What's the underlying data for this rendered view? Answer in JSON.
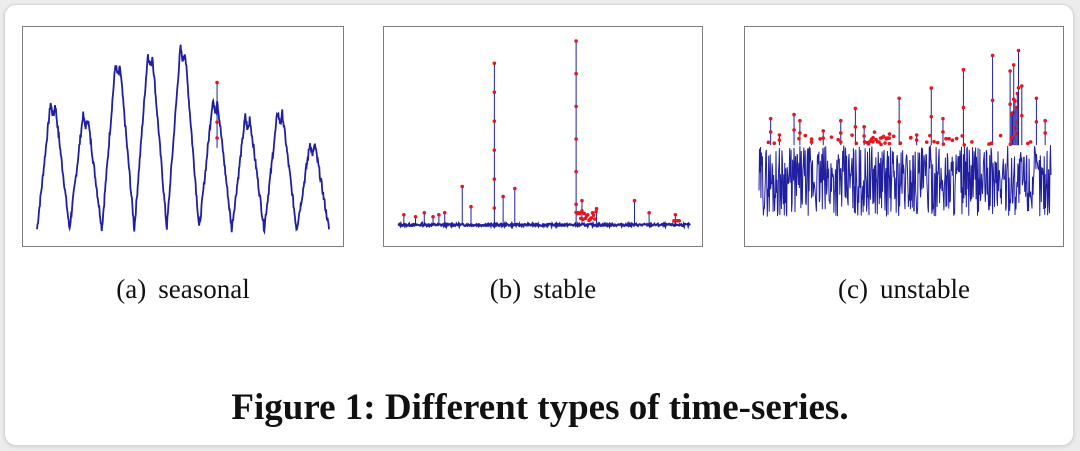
{
  "figure": {
    "title": "Figure 1: Different types of time-series."
  },
  "panels": [
    {
      "tag": "(a)",
      "label": "seasonal"
    },
    {
      "tag": "(b)",
      "label": "stable"
    },
    {
      "tag": "(c)",
      "label": "unstable"
    }
  ],
  "colors": {
    "series": "#1f1fa0",
    "anomaly": "#e8141e",
    "frame": "#7d7d7d"
  },
  "chart_data": [
    {
      "type": "line",
      "variant": "seasonal",
      "grid": false,
      "legend": "none",
      "series_color": "#1f1fa0",
      "anomaly_color": "#e8141e",
      "ylim": [
        0,
        1
      ],
      "cycles": 9,
      "cycle_peaks": [
        0.68,
        0.62,
        0.88,
        0.93,
        0.96,
        0.7,
        0.61,
        0.64,
        0.48
      ],
      "trough": 0.04,
      "anomaly_points": [
        0.78,
        0.58,
        0.5
      ]
    },
    {
      "type": "line",
      "variant": "stable",
      "grid": false,
      "legend": "none",
      "series_color": "#1f1fa0",
      "anomaly_color": "#e8141e",
      "ylim": [
        0,
        1
      ],
      "baseline": 0.06,
      "spikes": [
        {
          "t": 0.02,
          "v": 0.11
        },
        {
          "t": 0.06,
          "v": 0.1
        },
        {
          "t": 0.09,
          "v": 0.12
        },
        {
          "t": 0.12,
          "v": 0.1
        },
        {
          "t": 0.14,
          "v": 0.11
        },
        {
          "t": 0.16,
          "v": 0.12
        },
        {
          "t": 0.22,
          "v": 0.25
        },
        {
          "t": 0.25,
          "v": 0.15
        },
        {
          "t": 0.33,
          "v": 0.86
        },
        {
          "t": 0.36,
          "v": 0.2
        },
        {
          "t": 0.4,
          "v": 0.24
        },
        {
          "t": 0.61,
          "v": 0.97
        },
        {
          "t": 0.63,
          "v": 0.18
        },
        {
          "t": 0.68,
          "v": 0.14
        },
        {
          "t": 0.81,
          "v": 0.18
        },
        {
          "t": 0.86,
          "v": 0.12
        },
        {
          "t": 0.95,
          "v": 0.11
        }
      ]
    },
    {
      "type": "line",
      "variant": "unstable",
      "grid": false,
      "legend": "none",
      "series_color": "#1f1fa0",
      "anomaly_color": "#e8141e",
      "ylim": [
        0,
        1
      ],
      "band": [
        0.1,
        0.45
      ],
      "spikes": [
        {
          "t": 0.04,
          "v": 0.58
        },
        {
          "t": 0.07,
          "v": 0.5
        },
        {
          "t": 0.12,
          "v": 0.6
        },
        {
          "t": 0.14,
          "v": 0.57
        },
        {
          "t": 0.18,
          "v": 0.48
        },
        {
          "t": 0.22,
          "v": 0.52
        },
        {
          "t": 0.28,
          "v": 0.57
        },
        {
          "t": 0.33,
          "v": 0.63
        },
        {
          "t": 0.36,
          "v": 0.54
        },
        {
          "t": 0.48,
          "v": 0.68
        },
        {
          "t": 0.54,
          "v": 0.5
        },
        {
          "t": 0.59,
          "v": 0.73
        },
        {
          "t": 0.63,
          "v": 0.58
        },
        {
          "t": 0.7,
          "v": 0.82
        },
        {
          "t": 0.8,
          "v": 0.89
        },
        {
          "t": 0.9,
          "v": 0.74
        },
        {
          "t": 0.95,
          "v": 0.68
        },
        {
          "t": 0.98,
          "v": 0.57
        }
      ],
      "burst": {
        "t": [
          0.86,
          0.89
        ],
        "v": 0.97
      },
      "dense_anomaly_region": {
        "t": [
          0.37,
          0.45
        ],
        "v": 0.52
      }
    }
  ]
}
